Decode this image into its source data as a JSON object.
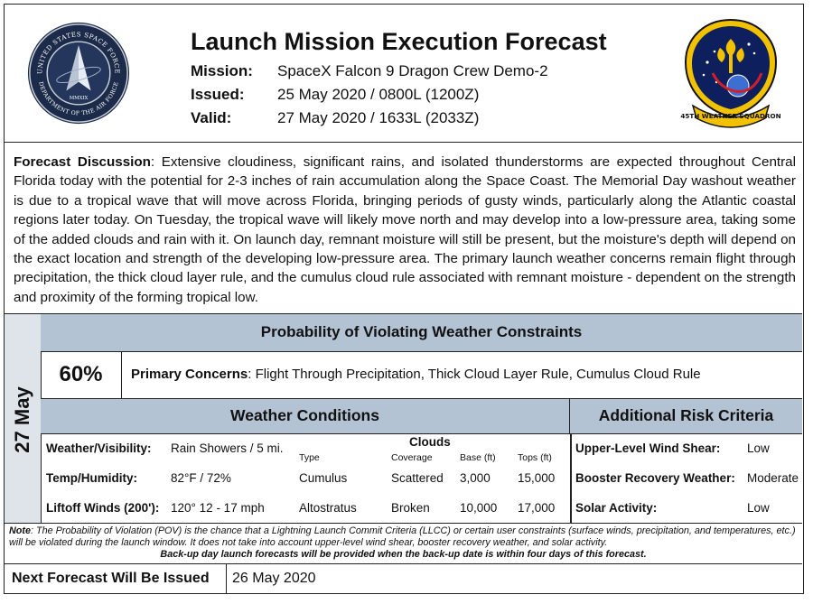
{
  "header": {
    "title": "Launch Mission Execution Forecast",
    "mission_label": "Mission:",
    "mission": "SpaceX Falcon 9 Dragon Crew Demo-2",
    "issued_label": "Issued:",
    "issued": "25 May 2020 / 0800L (1200Z)",
    "valid_label": "Valid:",
    "valid": "27 May 2020 / 1633L (2033Z)",
    "left_logo": {
      "text_top": "UNITED STATES SPACE FORCE",
      "text_bottom": "DEPARTMENT OF THE AIR FORCE",
      "year": "MMXIX"
    },
    "right_logo": {
      "banner": "45TH WEATHER SQUADRON"
    }
  },
  "discussion": {
    "label": "Forecast Discussion",
    "text": ": Extensive cloudiness, significant rains, and isolated thunderstorms are expected throughout Central Florida today with the potential for 2-3 inches of rain accumulation along the Space Coast. The Memorial Day washout weather is due to a tropical wave that will move across Florida, bringing periods of gusty winds, particularly along the Atlantic coastal regions later today. On Tuesday, the tropical wave will likely move north and may develop into a low-pressure area, taking some of the added clouds and rain with it. On launch day, remnant moisture will still be present, but the moisture's depth will depend on the exact location and strength of the developing low-pressure area. The primary launch weather concerns remain flight through precipitation, the thick cloud layer rule, and the cumulus cloud rule associated with remnant moisture - dependent on the strength and proximity of the forming tropical low."
  },
  "day": "27 May",
  "probability": {
    "heading": "Probability of Violating Weather Constraints",
    "value": "60%",
    "concerns_label": "Primary Concerns",
    "concerns": ": Flight Through Precipitation, Thick Cloud Layer Rule, Cumulus Cloud Rule"
  },
  "conditions": {
    "heading": "Weather Conditions",
    "rows": [
      {
        "label": "Weather/Visibility:",
        "value": "Rain Showers / 5 mi."
      },
      {
        "label": "Temp/Humidity:",
        "value": "82°F / 72%"
      },
      {
        "label": "Liftoff Winds (200'):",
        "value": "120° 12 - 17 mph"
      }
    ],
    "clouds": {
      "title": "Clouds",
      "headers": [
        "Type",
        "Coverage",
        "Base (ft)",
        "Tops (ft)"
      ],
      "rows": [
        [
          "Cumulus",
          "Scattered",
          "3,000",
          "15,000"
        ],
        [
          "Altostratus",
          "Broken",
          "10,000",
          "17,000"
        ]
      ]
    }
  },
  "risk": {
    "heading": "Additional Risk Criteria",
    "rows": [
      {
        "label": "Upper-Level Wind Shear:",
        "value": "Low"
      },
      {
        "label": "Booster Recovery Weather:",
        "value": "Moderate"
      },
      {
        "label": "Solar Activity:",
        "value": "Low"
      }
    ]
  },
  "note": {
    "label": "Note",
    "text": ": The Probability of Violation (POV) is the chance that a Lightning Launch Commit Criteria (LLCC) or certain user constraints (surface winds, precipitation, and temperatures, etc.) will be violated during the launch window. It does not take into account upper-level wind shear, booster recovery weather, and solar activity.",
    "backup": "Back-up day launch forecasts will be provided when the back-up date is within four days of this forecast."
  },
  "next": {
    "label": "Next Forecast Will Be Issued",
    "value": "26 May 2020"
  },
  "colors": {
    "band": "#b4c3d4",
    "sidebar": "#dfe4ea",
    "space_force_navy": "#1c2b4a",
    "squadron_yellow": "#f2c200"
  }
}
